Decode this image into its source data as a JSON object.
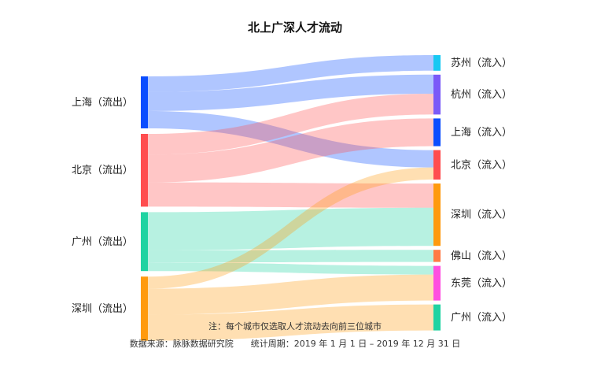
{
  "chart_data": {
    "type": "sankey",
    "title": "北上广深人才流动",
    "sources": [
      {
        "name": "上海（流出）",
        "color": "#0a4dff"
      },
      {
        "name": "北京（流出）",
        "color": "#ff4d4f"
      },
      {
        "name": "广州（流出）",
        "color": "#20d3a2"
      },
      {
        "name": "深圳（流出）",
        "color": "#ff9a0e"
      }
    ],
    "targets": [
      {
        "name": "苏州（流入）",
        "color": "#18c8f2"
      },
      {
        "name": "杭州（流入）",
        "color": "#7a5af8"
      },
      {
        "name": "上海（流入）",
        "color": "#0a4dff"
      },
      {
        "name": "北京（流入）",
        "color": "#ff4d4f"
      },
      {
        "name": "深圳（流入）",
        "color": "#ff9a0e"
      },
      {
        "name": "佛山（流入）",
        "color": "#ff7a45"
      },
      {
        "name": "东莞（流入）",
        "color": "#ff4fe0"
      },
      {
        "name": "广州（流入）",
        "color": "#20d3a2"
      }
    ],
    "links": [
      {
        "source": "上海（流出）",
        "target": "苏州（流入）",
        "value": 18
      },
      {
        "source": "上海（流出）",
        "target": "杭州（流入）",
        "value": 22
      },
      {
        "source": "上海（流出）",
        "target": "北京（流入）",
        "value": 20
      },
      {
        "source": "北京（流出）",
        "target": "杭州（流入）",
        "value": 24
      },
      {
        "source": "北京（流出）",
        "target": "上海（流入）",
        "value": 32
      },
      {
        "source": "北京（流出）",
        "target": "深圳（流入）",
        "value": 28
      },
      {
        "source": "广州（流出）",
        "target": "深圳（流入）",
        "value": 44
      },
      {
        "source": "广州（流出）",
        "target": "佛山（流入）",
        "value": 14
      },
      {
        "source": "广州（流出）",
        "target": "东莞（流入）",
        "value": 10
      },
      {
        "source": "深圳（流出）",
        "target": "北京（流入）",
        "value": 14
      },
      {
        "source": "深圳（流出）",
        "target": "东莞（流入）",
        "value": 30
      },
      {
        "source": "深圳（流出）",
        "target": "广州（流入）",
        "value": 30
      }
    ]
  },
  "notes": {
    "line1": "注：每个城市仅选取人才流动去向前三位城市",
    "line2": "数据来源：脉脉数据研究院　　统计周期：2019 年 1 月 1 日 – 2019 年 12 月 31 日"
  }
}
